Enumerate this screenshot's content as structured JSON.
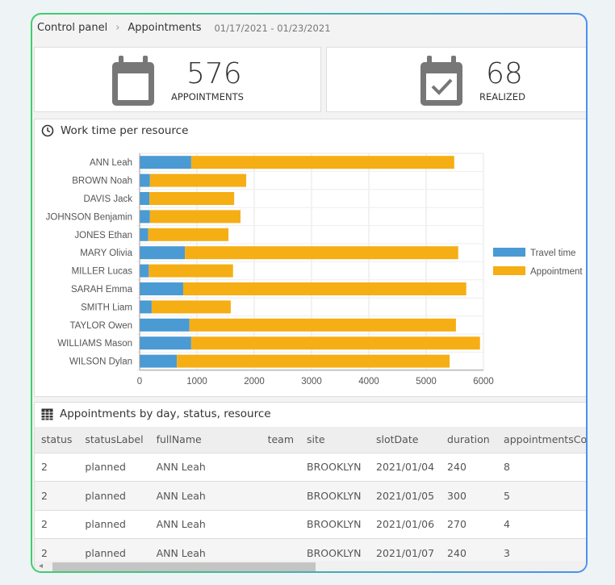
{
  "breadcrumb": {
    "root": "Control panel",
    "current": "Appointments",
    "date_range": "01/17/2021 - 01/23/2021"
  },
  "stats": [
    {
      "value": "576",
      "label": "APPOINTMENTS",
      "icon": "calendar-icon"
    },
    {
      "value": "68",
      "label": "REALIZED",
      "icon": "calendar-check-icon"
    }
  ],
  "chart_panel": {
    "title": "Work time per resource",
    "icon": "clock-icon"
  },
  "chart_data": {
    "type": "bar",
    "orientation": "horizontal",
    "stacked": true,
    "categories": [
      "ANN Leah",
      "BROWN Noah",
      "DAVIS Jack",
      "JOHNSON Benjamin",
      "JONES Ethan",
      "MARY Olivia",
      "MILLER Lucas",
      "SARAH Emma",
      "SMITH Liam",
      "TAYLOR Owen",
      "WILLIAMS Mason",
      "WILSON Dylan"
    ],
    "series": [
      {
        "name": "Travel time",
        "color": "#4a9ad4",
        "values": [
          900,
          180,
          170,
          180,
          150,
          790,
          160,
          760,
          210,
          870,
          900,
          650
        ]
      },
      {
        "name": "Appointment",
        "color": "#f6ae15",
        "values": [
          4590,
          1680,
          1480,
          1580,
          1400,
          4770,
          1470,
          4940,
          1380,
          4650,
          5040,
          4760
        ]
      }
    ],
    "xlim": [
      0,
      6000
    ],
    "xticks": [
      "0",
      "1000",
      "2000",
      "3000",
      "4000",
      "5000",
      "6000"
    ],
    "grid": true,
    "legend": "right"
  },
  "table_panel": {
    "title": "Appointments by day, status, resource",
    "icon": "table-icon"
  },
  "table": {
    "columns": [
      "status",
      "statusLabel",
      "fullName",
      "team",
      "site",
      "slotDate",
      "duration",
      "appointmentsCou"
    ],
    "rows": [
      [
        "2",
        "planned",
        "ANN Leah",
        "",
        "BROOKLYN",
        "2021/01/04",
        "240",
        "8"
      ],
      [
        "2",
        "planned",
        "ANN Leah",
        "",
        "BROOKLYN",
        "2021/01/05",
        "300",
        "5"
      ],
      [
        "2",
        "planned",
        "ANN Leah",
        "",
        "BROOKLYN",
        "2021/01/06",
        "270",
        "4"
      ],
      [
        "2",
        "planned",
        "ANN Leah",
        "",
        "BROOKLYN",
        "2021/01/07",
        "240",
        "3"
      ]
    ]
  }
}
